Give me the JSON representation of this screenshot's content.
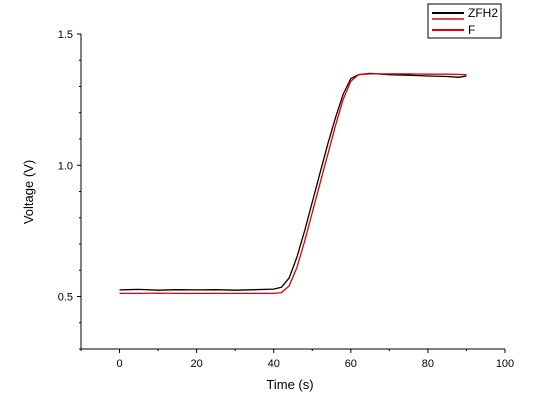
{
  "chart_data": {
    "type": "line",
    "xlabel": "Time (s)",
    "ylabel": "Voltage (V)",
    "xlim": [
      -10,
      100
    ],
    "ylim": [
      0.3,
      1.5
    ],
    "x_ticks": [
      0,
      20,
      40,
      60,
      80,
      100
    ],
    "x_tick_labels": [
      "0",
      "20",
      "40",
      "60",
      "80",
      "100"
    ],
    "y_ticks": [
      0.5,
      1.0,
      1.5
    ],
    "y_tick_labels": [
      "0.5",
      "1.0",
      "1.5"
    ],
    "grid": false,
    "legend_position": "top-right",
    "series": [
      {
        "name": "ZFH2",
        "color": "#000000",
        "x": [
          0,
          5,
          10,
          15,
          20,
          25,
          30,
          35,
          40,
          42,
          44,
          46,
          48,
          50,
          52,
          54,
          56,
          58,
          60,
          62,
          65,
          70,
          75,
          80,
          85,
          88,
          90
        ],
        "y": [
          0.525,
          0.527,
          0.524,
          0.526,
          0.525,
          0.526,
          0.524,
          0.526,
          0.528,
          0.535,
          0.57,
          0.65,
          0.75,
          0.86,
          0.97,
          1.08,
          1.18,
          1.27,
          1.33,
          1.345,
          1.35,
          1.345,
          1.343,
          1.34,
          1.338,
          1.335,
          1.34
        ]
      },
      {
        "name": "F",
        "color": "#e00000",
        "x": [
          0,
          5,
          10,
          15,
          20,
          25,
          30,
          35,
          40,
          42,
          44,
          46,
          48,
          50,
          52,
          54,
          56,
          58,
          60,
          62,
          65,
          70,
          75,
          80,
          85,
          88,
          90
        ],
        "y": [
          0.512,
          0.512,
          0.513,
          0.512,
          0.512,
          0.512,
          0.512,
          0.512,
          0.512,
          0.515,
          0.54,
          0.61,
          0.71,
          0.82,
          0.93,
          1.04,
          1.15,
          1.25,
          1.32,
          1.345,
          1.348,
          1.348,
          1.348,
          1.347,
          1.347,
          1.346,
          1.345
        ]
      }
    ]
  }
}
